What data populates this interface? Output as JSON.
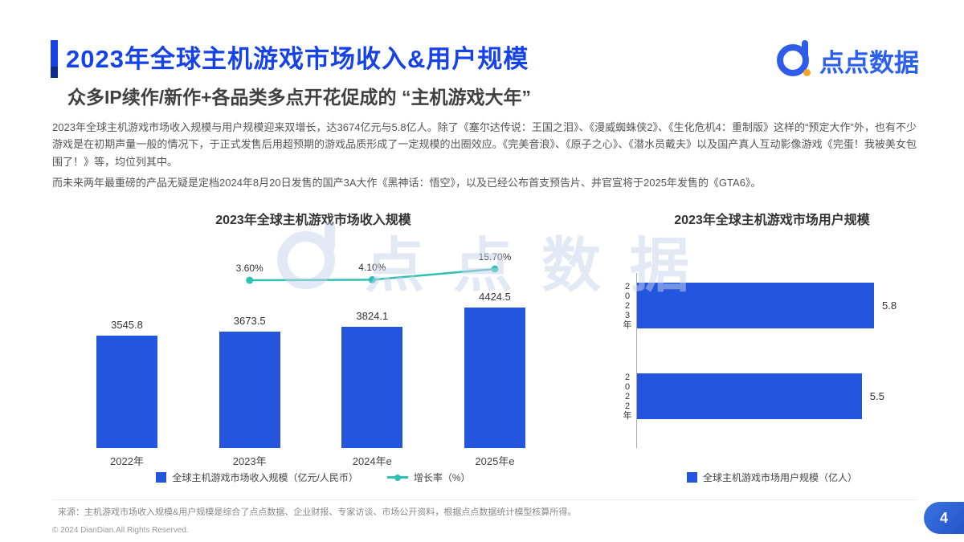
{
  "header": {
    "title": "2023年全球主机游戏市场收入&用户规模",
    "subtitle": "众多IP续作/新作+各品类多点开花促成的 “主机游戏大年”",
    "brand": "点点数据"
  },
  "body": {
    "paragraph1": "2023年全球主机游戏市场收入规模与用户规模迎来双增长，达3674亿元与5.8亿人。除了《塞尔达传说：王国之泪》、《漫威蜘蛛侠2》、《生化危机4：重制版》这样的“预定大作”外，也有不少游戏是在初期声量一般的情况下，于正式发售后用超预期的游戏品质形成了一定规模的出圈效应。《完美音浪》、《原子之心》、《潜水员戴夫》以及国产真人互动影像游戏《完蛋！我被美女包围了！》等，均位列其中。",
    "paragraph2": "而未来两年最重磅的产品无疑是定档2024年8月20日发售的国产3A大作《黑神话：悟空》，以及已经公布首支预告片、并官宣将于2025年发售的《GTA6》。"
  },
  "footer": {
    "source": "来源：主机游戏市场收入规模&用户规模是综合了点点数据、企业财报、专家访谈、市场公开资料，根据点点数据统计模型核算所得。",
    "copyright": "© 2024 DianDian.All Rights Reserved.",
    "page_number": "4"
  },
  "colors": {
    "title_blue": "#1643E8",
    "bar_blue": "#2355DE",
    "line_teal": "#2FBFB4",
    "watermark": "#C6D3EA"
  },
  "chart_data": [
    {
      "type": "bar",
      "title": "2023年全球主机游戏市场收入规模",
      "categories": [
        "2022年",
        "2023年",
        "2024年e",
        "2025年e"
      ],
      "series": [
        {
          "name": "全球主机游戏市场收入规模（亿元/人民币）",
          "type": "bar",
          "values": [
            3545.8,
            3673.5,
            3824.1,
            4424.5
          ],
          "value_labels": [
            "3545.8",
            "3673.5",
            "3824.1",
            "4424.5"
          ]
        },
        {
          "name": "增长率（%）",
          "type": "line",
          "values": [
            null,
            3.6,
            4.1,
            15.7
          ],
          "point_labels": [
            "",
            "3.60%",
            "4.10%",
            "15.70%"
          ]
        }
      ],
      "ylim": [
        0,
        4800
      ],
      "legend_position": "bottom",
      "grid": false
    },
    {
      "type": "bar",
      "orientation": "horizontal",
      "title": "2023年全球主机游戏市场用户规模",
      "categories": [
        "2023年",
        "2022年"
      ],
      "values": [
        5.8,
        5.5
      ],
      "value_labels": [
        "5.8",
        "5.5"
      ],
      "series_name": "全球主机游戏市场用户规模（亿人）",
      "xlim": [
        0,
        6
      ],
      "legend_position": "bottom",
      "grid": false
    }
  ]
}
